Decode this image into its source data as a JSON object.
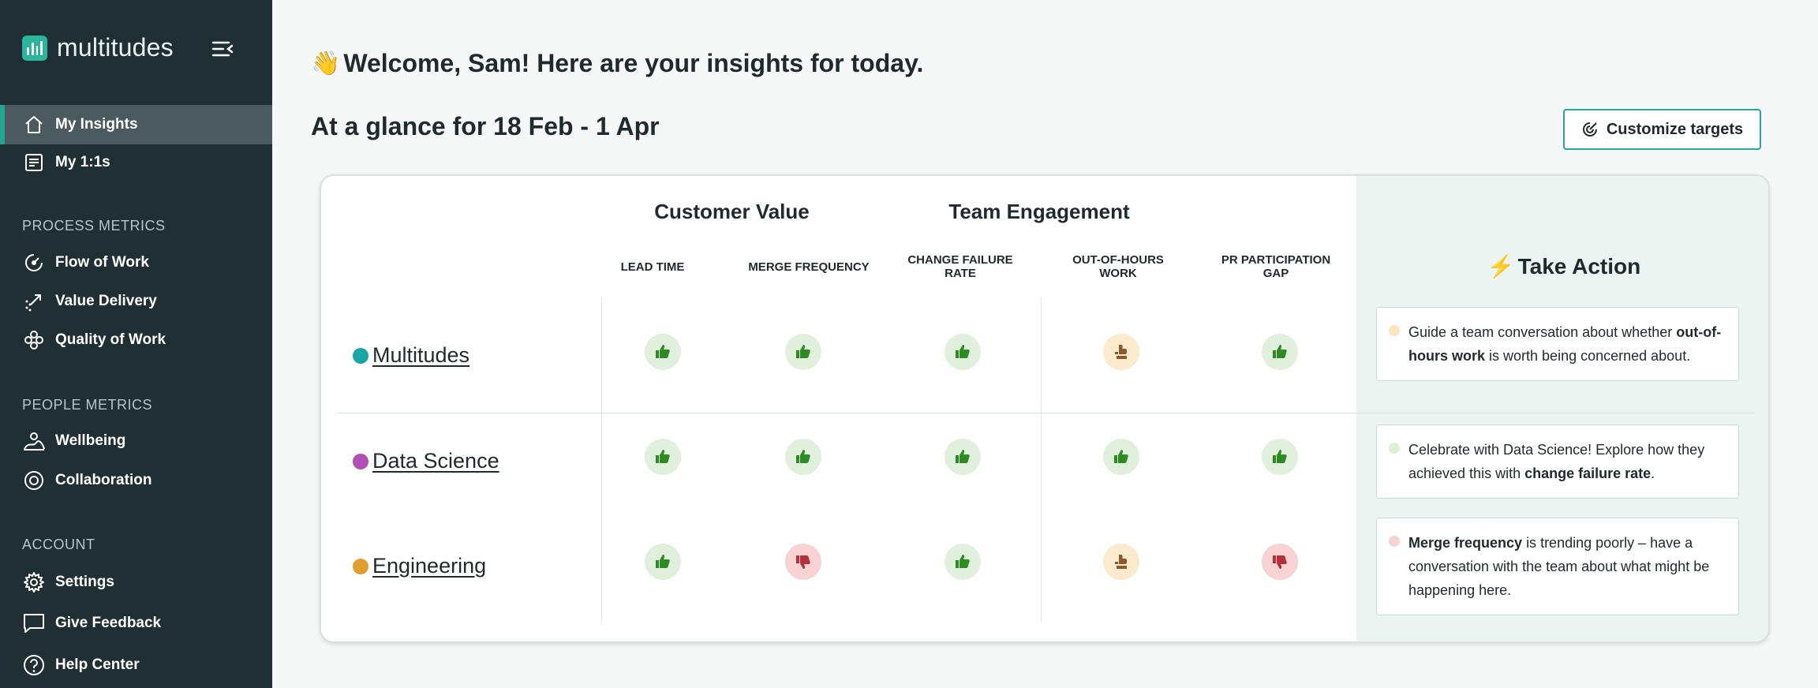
{
  "brand": {
    "name": "multitudes"
  },
  "sidebar": {
    "top_items": [
      {
        "label": "My Insights",
        "icon": "home-icon"
      },
      {
        "label": "My 1:1s",
        "icon": "notes-icon"
      }
    ],
    "sections": [
      {
        "title": "PROCESS METRICS",
        "items": [
          {
            "label": "Flow of Work",
            "icon": "flow-icon"
          },
          {
            "label": "Value Delivery",
            "icon": "trend-icon"
          },
          {
            "label": "Quality of Work",
            "icon": "quality-icon"
          }
        ]
      },
      {
        "title": "PEOPLE METRICS",
        "items": [
          {
            "label": "Wellbeing",
            "icon": "wellbeing-icon"
          },
          {
            "label": "Collaboration",
            "icon": "collaboration-icon"
          }
        ]
      },
      {
        "title": "ACCOUNT",
        "items": [
          {
            "label": "Settings",
            "icon": "gear-icon"
          },
          {
            "label": "Give Feedback",
            "icon": "chat-icon"
          },
          {
            "label": "Help Center",
            "icon": "help-icon"
          }
        ]
      }
    ]
  },
  "main": {
    "wave_emoji": "👋",
    "welcome": "Welcome, Sam!  Here are your insights for today.",
    "glance_title": "At a glance for 18 Feb - 1 Apr",
    "customize_label": "Customize targets"
  },
  "insights": {
    "groups": [
      "Customer Value",
      "Team Engagement"
    ],
    "columns": [
      "LEAD TIME",
      "MERGE FREQUENCY",
      "CHANGE FAILURE RATE",
      "OUT-OF-HOURS WORK",
      "PR PARTICIPATION GAP"
    ],
    "teams": [
      {
        "name": "Multitudes",
        "color": "#1aa6a6",
        "statuses": [
          "good",
          "good",
          "good",
          "warn",
          "good"
        ]
      },
      {
        "name": "Data Science",
        "color": "#b24fb5",
        "statuses": [
          "good",
          "good",
          "good",
          "good",
          "good"
        ]
      },
      {
        "name": "Engineering",
        "color": "#e0a030",
        "statuses": [
          "good",
          "bad",
          "good",
          "warn",
          "bad"
        ]
      }
    ],
    "take_action_title": "Take Action",
    "actions": [
      {
        "dot_color": "#fbe6c2",
        "pre": "Guide a team conversation about whether",
        "bold": "out-of-hours work",
        "post": "is worth being concerned about."
      },
      {
        "dot_color": "#dcefd8",
        "pre": "Celebrate with Data Science! Explore how they achieved this with",
        "bold": "change failure rate",
        "post": "."
      },
      {
        "dot_color": "#f8d2d3",
        "pre": "",
        "bold": "Merge frequency",
        "post": "is trending poorly – have a conversation with the team about what might be happening here."
      }
    ]
  },
  "colors": {
    "sidebar_bg": "#1f2f34",
    "accent": "#24a792",
    "good": "#2e8b24",
    "warn": "#8a5a2c",
    "bad": "#b2313a"
  }
}
